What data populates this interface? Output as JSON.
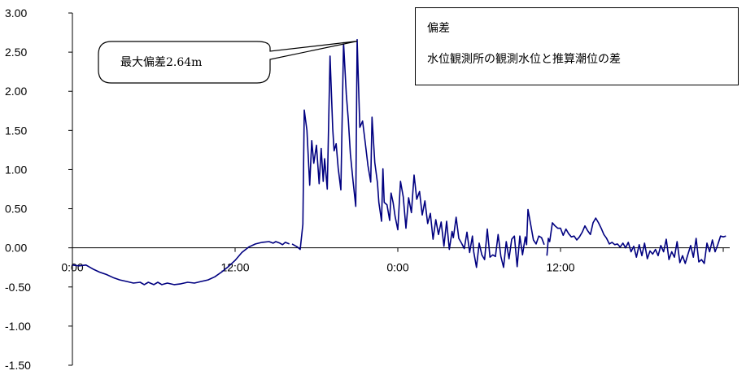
{
  "chart_data": {
    "type": "line",
    "ylim": [
      -1.5,
      3.0
    ],
    "y_ticks": [
      "3.00",
      "2.50",
      "2.00",
      "1.50",
      "1.00",
      "0.50",
      "0.00",
      "-0.50",
      "-1.00",
      "-1.50"
    ],
    "y_tick_values": [
      3.0,
      2.5,
      2.0,
      1.5,
      1.0,
      0.5,
      0.0,
      -0.5,
      -1.0,
      -1.5
    ],
    "x_ticks": [
      {
        "label": "0:00",
        "hour": 0
      },
      {
        "label": "12:00",
        "hour": 12
      },
      {
        "label": "0:00",
        "hour": 24
      },
      {
        "label": "12:00",
        "hour": 36
      }
    ],
    "xlim_hours": [
      0,
      48.4
    ],
    "line_color": "#000080",
    "grid": false,
    "series": [
      {
        "segments": [
          [
            [
              0.0,
              -0.22
            ],
            [
              0.5,
              -0.23
            ],
            [
              1.0,
              -0.22
            ],
            [
              1.5,
              -0.27
            ],
            [
              2.0,
              -0.31
            ],
            [
              2.5,
              -0.34
            ],
            [
              3.0,
              -0.38
            ],
            [
              3.5,
              -0.41
            ],
            [
              4.0,
              -0.43
            ],
            [
              4.5,
              -0.45
            ],
            [
              5.0,
              -0.44
            ],
            [
              5.3,
              -0.47
            ],
            [
              5.6,
              -0.44
            ],
            [
              6.0,
              -0.47
            ],
            [
              6.3,
              -0.44
            ],
            [
              6.6,
              -0.47
            ],
            [
              7.0,
              -0.45
            ],
            [
              7.5,
              -0.47
            ],
            [
              8.0,
              -0.46
            ],
            [
              8.5,
              -0.44
            ],
            [
              9.0,
              -0.45
            ],
            [
              9.5,
              -0.43
            ],
            [
              10.0,
              -0.41
            ],
            [
              10.5,
              -0.37
            ],
            [
              11.0,
              -0.31
            ],
            [
              11.5,
              -0.24
            ],
            [
              12.0,
              -0.16
            ],
            [
              12.5,
              -0.06
            ],
            [
              13.0,
              0.01
            ],
            [
              13.5,
              0.05
            ],
            [
              14.0,
              0.07
            ],
            [
              14.5,
              0.08
            ],
            [
              14.8,
              0.06
            ],
            [
              15.0,
              0.08
            ],
            [
              15.3,
              0.06
            ],
            [
              15.5,
              0.04
            ],
            [
              15.7,
              0.07
            ],
            [
              16.0,
              0.05
            ]
          ],
          [
            [
              16.2,
              0.05
            ],
            [
              16.6,
              0.01
            ],
            [
              16.8,
              -0.02
            ],
            [
              17.0,
              0.3
            ],
            [
              17.1,
              1.76
            ],
            [
              17.3,
              1.5
            ],
            [
              17.5,
              0.8
            ],
            [
              17.65,
              1.37
            ],
            [
              17.8,
              1.08
            ],
            [
              18.0,
              1.31
            ],
            [
              18.2,
              0.82
            ],
            [
              18.35,
              1.27
            ],
            [
              18.5,
              0.85
            ],
            [
              18.6,
              1.14
            ],
            [
              18.8,
              0.75
            ],
            [
              19.0,
              2.45
            ],
            [
              19.2,
              1.52
            ],
            [
              19.3,
              1.24
            ],
            [
              19.45,
              1.33
            ],
            [
              19.6,
              1.02
            ],
            [
              19.8,
              0.74
            ],
            [
              20.0,
              2.62
            ],
            [
              20.2,
              1.96
            ],
            [
              20.35,
              1.63
            ],
            [
              20.5,
              1.2
            ],
            [
              20.7,
              0.85
            ],
            [
              20.9,
              0.53
            ],
            [
              21.0,
              2.66
            ],
            [
              21.2,
              1.54
            ],
            [
              21.4,
              1.62
            ],
            [
              21.6,
              1.34
            ],
            [
              21.8,
              1.05
            ],
            [
              22.0,
              0.84
            ],
            [
              22.1,
              1.67
            ],
            [
              22.3,
              1.09
            ],
            [
              22.5,
              0.83
            ],
            [
              22.6,
              0.58
            ],
            [
              22.8,
              0.34
            ],
            [
              22.9,
              1.01
            ],
            [
              23.0,
              0.58
            ],
            [
              23.2,
              0.55
            ],
            [
              23.4,
              0.35
            ],
            [
              23.5,
              0.7
            ],
            [
              23.65,
              0.58
            ],
            [
              23.8,
              0.4
            ],
            [
              24.0,
              0.23
            ],
            [
              24.2,
              0.85
            ],
            [
              24.4,
              0.65
            ],
            [
              24.6,
              0.25
            ],
            [
              24.8,
              0.64
            ],
            [
              25.0,
              0.45
            ],
            [
              25.2,
              0.93
            ],
            [
              25.4,
              0.62
            ],
            [
              25.6,
              0.72
            ],
            [
              25.8,
              0.42
            ],
            [
              26.0,
              0.6
            ],
            [
              26.2,
              0.31
            ],
            [
              26.4,
              0.44
            ],
            [
              26.6,
              0.11
            ],
            [
              26.8,
              0.36
            ],
            [
              27.0,
              0.17
            ],
            [
              27.2,
              0.33
            ],
            [
              27.4,
              0.02
            ],
            [
              27.6,
              0.34
            ],
            [
              27.8,
              -0.02
            ],
            [
              28.0,
              0.21
            ],
            [
              28.1,
              0.13
            ],
            [
              28.3,
              0.39
            ],
            [
              28.5,
              0.12
            ],
            [
              28.7,
              0.06
            ],
            [
              28.9,
              -0.01
            ],
            [
              29.1,
              0.2
            ],
            [
              29.3,
              -0.06
            ],
            [
              29.5,
              0.15
            ],
            [
              29.6,
              -0.05
            ],
            [
              29.8,
              -0.25
            ],
            [
              30.0,
              0.06
            ],
            [
              30.2,
              -0.09
            ],
            [
              30.4,
              -0.15
            ],
            [
              30.6,
              0.24
            ],
            [
              30.8,
              -0.12
            ],
            [
              31.0,
              -0.09
            ],
            [
              31.2,
              -0.11
            ],
            [
              31.4,
              0.17
            ],
            [
              31.6,
              -0.11
            ],
            [
              31.8,
              -0.25
            ],
            [
              32.0,
              0.08
            ],
            [
              32.2,
              -0.14
            ],
            [
              32.4,
              0.11
            ],
            [
              32.6,
              0.15
            ],
            [
              32.8,
              -0.24
            ],
            [
              33.0,
              0.15
            ],
            [
              33.2,
              -0.09
            ],
            [
              33.4,
              0.14
            ],
            [
              33.5,
              0.04
            ],
            [
              33.6,
              0.49
            ],
            [
              33.8,
              0.3
            ],
            [
              34.0,
              0.1
            ],
            [
              34.2,
              0.05
            ],
            [
              34.4,
              0.15
            ],
            [
              34.6,
              0.13
            ],
            [
              34.8,
              0.04
            ]
          ],
          [
            [
              35.0,
              -0.1
            ],
            [
              35.1,
              0.12
            ],
            [
              35.2,
              0.08
            ],
            [
              35.4,
              0.32
            ],
            [
              35.6,
              0.28
            ],
            [
              35.8,
              0.25
            ],
            [
              36.0,
              0.25
            ],
            [
              36.2,
              0.16
            ],
            [
              36.4,
              0.24
            ],
            [
              36.6,
              0.18
            ],
            [
              36.8,
              0.14
            ],
            [
              37.0,
              0.15
            ],
            [
              37.2,
              0.1
            ],
            [
              37.4,
              0.14
            ],
            [
              37.6,
              0.2
            ],
            [
              37.8,
              0.28
            ],
            [
              38.0,
              0.22
            ],
            [
              38.2,
              0.17
            ],
            [
              38.4,
              0.32
            ],
            [
              38.6,
              0.38
            ],
            [
              38.8,
              0.32
            ],
            [
              39.0,
              0.25
            ],
            [
              39.2,
              0.17
            ],
            [
              39.4,
              0.12
            ],
            [
              39.6,
              0.05
            ],
            [
              39.8,
              0.07
            ],
            [
              40.0,
              0.04
            ],
            [
              40.2,
              0.05
            ],
            [
              40.4,
              0.01
            ],
            [
              40.6,
              0.06
            ],
            [
              40.8,
              0.0
            ],
            [
              41.0,
              0.07
            ],
            [
              41.2,
              -0.05
            ],
            [
              41.4,
              0.02
            ],
            [
              41.6,
              -0.12
            ],
            [
              41.8,
              0.04
            ],
            [
              42.0,
              -0.1
            ],
            [
              42.2,
              0.06
            ],
            [
              42.4,
              -0.14
            ],
            [
              42.6,
              -0.04
            ],
            [
              42.8,
              -0.08
            ],
            [
              43.0,
              -0.02
            ],
            [
              43.2,
              -0.1
            ],
            [
              43.4,
              0.03
            ],
            [
              43.6,
              -0.05
            ],
            [
              43.8,
              0.11
            ],
            [
              44.0,
              -0.15
            ],
            [
              44.2,
              -0.05
            ],
            [
              44.4,
              -0.12
            ],
            [
              44.6,
              0.08
            ],
            [
              44.8,
              -0.19
            ],
            [
              45.0,
              -0.1
            ],
            [
              45.2,
              -0.2
            ],
            [
              45.4,
              -0.08
            ],
            [
              45.6,
              0.03
            ],
            [
              45.8,
              -0.12
            ],
            [
              46.0,
              0.12
            ],
            [
              46.2,
              -0.18
            ],
            [
              46.4,
              -0.15
            ],
            [
              46.6,
              -0.2
            ],
            [
              46.8,
              0.06
            ],
            [
              47.0,
              -0.05
            ],
            [
              47.2,
              0.1
            ],
            [
              47.4,
              -0.05
            ],
            [
              47.6,
              0.04
            ],
            [
              47.8,
              0.15
            ],
            [
              48.0,
              0.14
            ],
            [
              48.2,
              0.15
            ]
          ]
        ]
      }
    ]
  },
  "legend": {
    "title": "偏差",
    "description": "水位観測所の観測水位と推算潮位の差"
  },
  "callout": {
    "text": "最大偏差2.64m",
    "target_hour": 21.0,
    "target_value": 2.64
  }
}
